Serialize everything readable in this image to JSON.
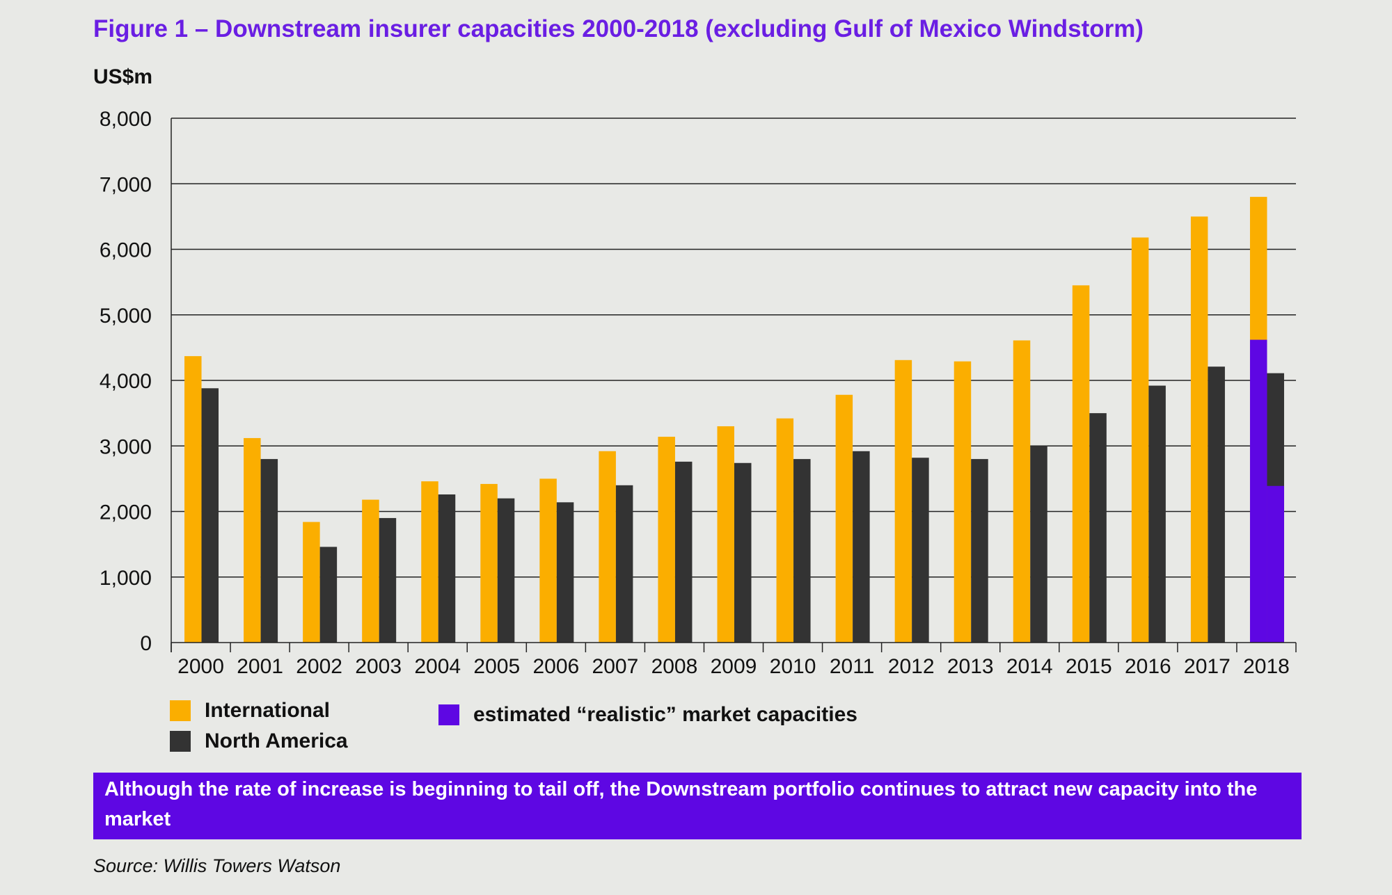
{
  "title": "Figure 1 – Downstream insurer capacities 2000-2018 (excluding Gulf of Mexico Windstorm)",
  "unit_label": "US$m",
  "colors": {
    "international": "#fbae00",
    "north_america": "#333333",
    "realistic": "#5e07e3",
    "title": "#6a1ee3",
    "background": "#e8e9e6"
  },
  "legend": {
    "international": "International",
    "north_america": "North America",
    "realistic": "estimated “realistic” market capacities"
  },
  "note": "Although the rate of increase is beginning to tail off, the Downstream portfolio continues to attract new capacity into the market",
  "source": "Source: Willis Towers Watson",
  "chart_data": {
    "type": "bar",
    "title": "Figure 1 – Downstream insurer capacities 2000-2018 (excluding Gulf of Mexico Windstorm)",
    "ylabel": "US$m",
    "xlabel": "",
    "ylim": [
      0,
      8000
    ],
    "yticks": [
      0,
      1000,
      2000,
      3000,
      4000,
      5000,
      6000,
      7000,
      8000
    ],
    "ytick_labels": [
      "0",
      "1,000",
      "2,000",
      "3,000",
      "4,000",
      "5,000",
      "6,000",
      "7,000",
      "8,000"
    ],
    "grid": true,
    "legend_position": "bottom-left",
    "categories": [
      "2000",
      "2001",
      "2002",
      "2003",
      "2004",
      "2005",
      "2006",
      "2007",
      "2008",
      "2009",
      "2010",
      "2011",
      "2012",
      "2013",
      "2014",
      "2015",
      "2016",
      "2017",
      "2018"
    ],
    "series": [
      {
        "name": "International",
        "values": [
          4370,
          3120,
          1840,
          2180,
          2460,
          2420,
          2500,
          2920,
          3140,
          3300,
          3420,
          3780,
          4310,
          4290,
          4610,
          5450,
          6180,
          6500,
          6800
        ]
      },
      {
        "name": "North America",
        "values": [
          3880,
          2800,
          1460,
          1900,
          2260,
          2200,
          2140,
          2400,
          2760,
          2740,
          2800,
          2920,
          2820,
          2800,
          3000,
          3500,
          3920,
          4210,
          4110
        ]
      }
    ],
    "overlays": [
      {
        "name": "estimated “realistic” market capacities",
        "category": "2018",
        "series": "International",
        "value": 4620
      },
      {
        "name": "estimated “realistic” market capacities",
        "category": "2018",
        "series": "North America",
        "value": 2390
      }
    ]
  }
}
